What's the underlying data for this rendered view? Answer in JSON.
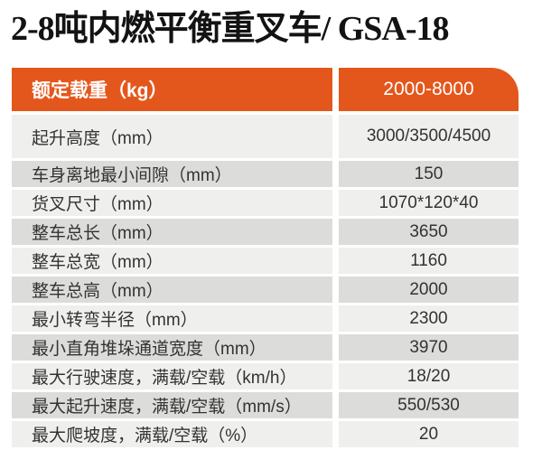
{
  "title": "2-8吨内燃平衡重叉车/ GSA-18",
  "colors": {
    "accent_orange": "#E4571C",
    "row_light": "#EFEFED",
    "row_dark": "#DCDCDA",
    "header_text": "#FFFFFF",
    "body_text": "#333333",
    "title_text": "#131313"
  },
  "table": {
    "header": {
      "label": "额定载重（kg）",
      "value": "2000-8000"
    },
    "rows": [
      {
        "label": "起升高度（mm）",
        "value": "3000/3500/4500"
      },
      {
        "label": "车身离地最小间隙（mm）",
        "value": "150"
      },
      {
        "label": "货叉尺寸（mm）",
        "value": "1070*120*40"
      },
      {
        "label": "整车总长（mm）",
        "value": "3650"
      },
      {
        "label": "整车总宽（mm）",
        "value": "1160"
      },
      {
        "label": "整车总高（mm）",
        "value": "2000"
      },
      {
        "label": "最小转弯半径（mm）",
        "value": "2300"
      },
      {
        "label": "最小直角堆垛通道宽度（mm）",
        "value": "3970"
      },
      {
        "label": "最大行驶速度，满载/空载（km/h）",
        "value": "18/20"
      },
      {
        "label": "最大起升速度，满载/空载（mm/s）",
        "value": "550/530"
      },
      {
        "label": "最大爬坡度，满载/空载（%）",
        "value": "20"
      }
    ]
  }
}
